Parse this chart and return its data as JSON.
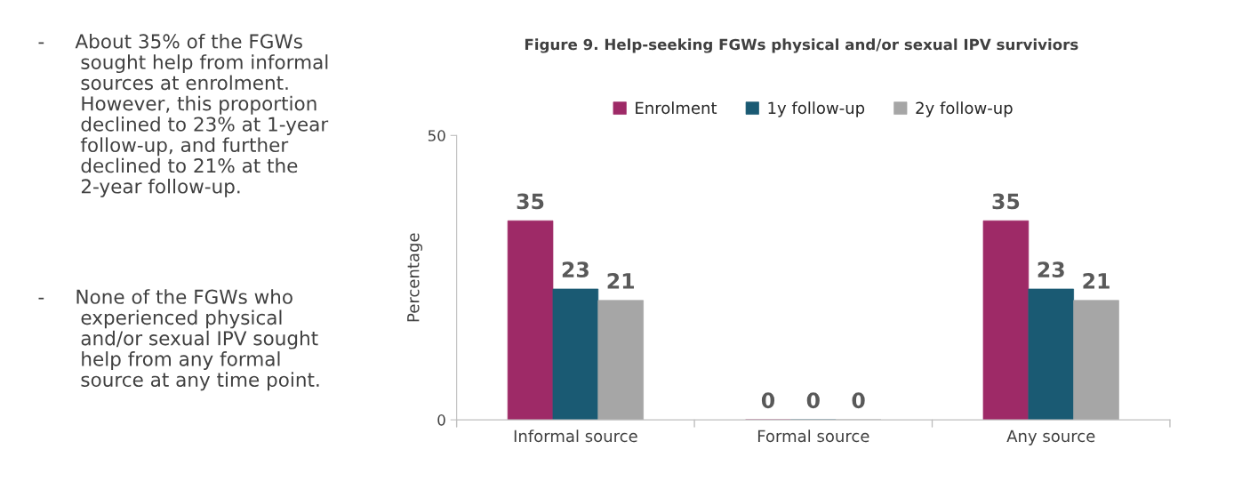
{
  "chart_data": {
    "type": "bar",
    "title": "Figure 9. Help-seeking FGWs physical and/or sexual IPV surviviors",
    "ylabel": "Percentage",
    "categories": [
      "Informal source",
      "Formal source",
      "Any source"
    ],
    "series": [
      {
        "name": "Enrolment",
        "color": "#9e2a67",
        "values": [
          35,
          0,
          35
        ]
      },
      {
        "name": "1y follow-up",
        "color": "#1a5a73",
        "values": [
          23,
          0,
          23
        ]
      },
      {
        "name": "2y follow-up",
        "color": "#a6a6a6",
        "values": [
          21,
          0,
          21
        ]
      }
    ],
    "ylim": [
      0,
      50
    ],
    "yticks": [
      0,
      50
    ],
    "data_labels": true,
    "legend": "top",
    "grid": false,
    "annotations": [
      "-     About 35% of the FGWs\n       sought help from informal\n       sources at enrolment.\n       However, this proportion\n       declined to 23% at 1-year\n       follow-up, and further\n       declined to 21% at the\n       2-year follow-up.",
      "-     None of the FGWs who\n       experienced physical\n       and/or sexual IPV sought\n       help from any formal\n       source at any time point."
    ]
  }
}
